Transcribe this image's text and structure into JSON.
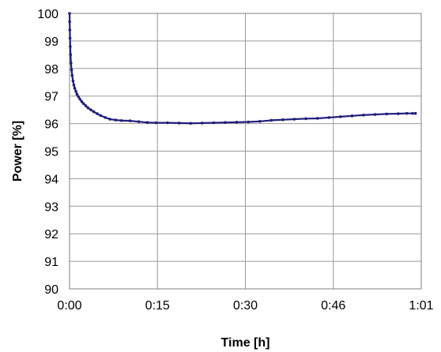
{
  "chart_data": {
    "type": "line",
    "title": "",
    "xlabel": "Time [h]",
    "ylabel": "Power [%]",
    "ylim": [
      90,
      100
    ],
    "xlim_minutes": [
      0,
      61
    ],
    "x_ticks": [
      {
        "label": "0:00",
        "minutes": 0
      },
      {
        "label": "0:15",
        "minutes": 15.25
      },
      {
        "label": "0:30",
        "minutes": 30.5
      },
      {
        "label": "0:46",
        "minutes": 45.75
      },
      {
        "label": "1:01",
        "minutes": 61
      }
    ],
    "y_ticks": [
      "90",
      "91",
      "92",
      "93",
      "94",
      "95",
      "96",
      "97",
      "98",
      "99",
      "100"
    ],
    "grid": true,
    "legend": "none",
    "series_color": "#1f1f7a",
    "series": [
      {
        "x_minutes": [
          0,
          0.02,
          0.05,
          0.08,
          0.12,
          0.17,
          0.25,
          0.35,
          0.45,
          0.6,
          0.75,
          0.9,
          1.1,
          1.3,
          1.55,
          1.8,
          2.1,
          2.4,
          2.8,
          3.2,
          3.7,
          4.2,
          4.8,
          5.4,
          6.2,
          7.0,
          8.0,
          9.0,
          10.5,
          12.0,
          13.5,
          15.0,
          17.0,
          19.0,
          21.0,
          23.0,
          25.0,
          27.0,
          29.0,
          31.0,
          33.0,
          35.0,
          37.0,
          39.0,
          41.0,
          43.0,
          45.0,
          47.0,
          49.0,
          51.0,
          53.0,
          55.0,
          57.0,
          58.5,
          59.5,
          60.0
        ],
        "y": [
          100.0,
          99.7,
          99.4,
          99.1,
          98.8,
          98.5,
          98.2,
          97.95,
          97.75,
          97.55,
          97.4,
          97.28,
          97.17,
          97.06,
          96.97,
          96.89,
          96.8,
          96.73,
          96.65,
          96.57,
          96.5,
          96.43,
          96.36,
          96.29,
          96.22,
          96.16,
          96.13,
          96.11,
          96.1,
          96.07,
          96.04,
          96.03,
          96.03,
          96.02,
          96.01,
          96.02,
          96.03,
          96.04,
          96.05,
          96.06,
          96.08,
          96.12,
          96.14,
          96.16,
          96.18,
          96.19,
          96.22,
          96.25,
          96.28,
          96.31,
          96.33,
          96.35,
          96.36,
          96.37,
          96.37,
          96.37
        ]
      }
    ]
  }
}
